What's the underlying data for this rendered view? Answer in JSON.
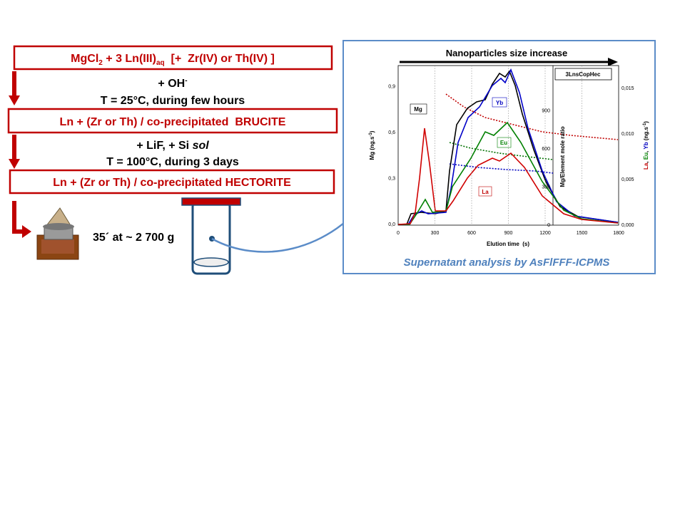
{
  "box1": {
    "parts": [
      "MgCl",
      "2",
      " + 3 Ln(III)",
      "aq",
      "  [+  Zr(IV) or Th(IV) ]"
    ]
  },
  "step1": {
    "reagent": "+ OH",
    "reagent_sup": "-",
    "condition": "T = 25°C, during few hours"
  },
  "box2": "Ln + (Zr or Th) / co-precipitated  BRUCITE",
  "step2": {
    "reagent": "+ LiF, + Si ",
    "reagent_italic": "sol",
    "condition": "T = 100°C, during 3 days"
  },
  "box3": "Ln + (Zr or Th) / co-precipitated HECTORITE",
  "centrifugation": "35´ at ~ 2 700 g",
  "analysis": {
    "title": "Nanoparticles size increase",
    "legend": "3LnsCopHec",
    "curve_labels": [
      "Mg",
      "Yb",
      "Eu",
      "La"
    ],
    "y_label": [
      "Mg (ng.s",
      "-1",
      ")"
    ],
    "x_label": "Elution time  (s)",
    "ratio_label": "Mg/Element mole ratio",
    "right_label": [
      "La",
      ", ",
      "Eu",
      ", ",
      "Yb",
      " (ng.s",
      "-1",
      ")"
    ],
    "y_ticks": [
      "0,0",
      "0,3",
      "0,6",
      "0,9"
    ],
    "x_ticks": [
      "0",
      "300",
      "600",
      "900",
      "1200",
      "1500",
      "1800"
    ],
    "right_ticks": [
      "0,000",
      "0,005",
      "0,010",
      "0,015"
    ],
    "ratio_ticks": [
      "0",
      "300",
      "600",
      "900"
    ],
    "caption": "Supernatant analysis by AsFlFFF-ICPMS"
  }
}
